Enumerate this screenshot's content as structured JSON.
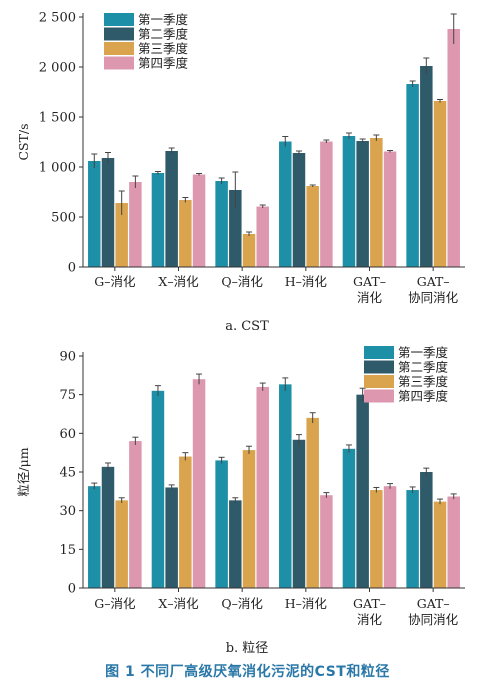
{
  "caption": "图 1   不同厂高级厌氧消化污泥的CST和粒径",
  "colors": [
    "#1d8fa6",
    "#2f5a6a",
    "#d9a44d",
    "#dd98b0"
  ],
  "chart_data": [
    {
      "type": "bar",
      "subtitle": "a. CST",
      "ylabel": "CST/s",
      "ylim": [
        0,
        2500
      ],
      "yticks": [
        0,
        500,
        1000,
        1500,
        2000,
        2500
      ],
      "ytick_labels": [
        "0",
        "500",
        "1 000",
        "1 500",
        "2 000",
        "2 500"
      ],
      "categories": [
        [
          "G–消化"
        ],
        [
          "X–消化"
        ],
        [
          "Q–消化"
        ],
        [
          "H–消化"
        ],
        [
          "GAT–",
          "消化"
        ],
        [
          "GAT–",
          "协同消化"
        ]
      ],
      "legend_position": "top-left",
      "series": [
        {
          "name": "第一季度",
          "values": [
            1060,
            940,
            860,
            1255,
            1310,
            1830
          ],
          "errors": [
            70,
            15,
            30,
            50,
            30,
            30
          ]
        },
        {
          "name": "第二季度",
          "values": [
            1090,
            1160,
            770,
            1140,
            1260,
            2010
          ],
          "errors": [
            55,
            30,
            180,
            20,
            20,
            80
          ]
        },
        {
          "name": "第三季度",
          "values": [
            640,
            670,
            330,
            810,
            1290,
            1660
          ],
          "errors": [
            120,
            25,
            20,
            10,
            30,
            15
          ]
        },
        {
          "name": "第四季度",
          "values": [
            850,
            925,
            605,
            1255,
            1155,
            2380
          ],
          "errors": [
            60,
            10,
            15,
            15,
            10,
            150
          ]
        }
      ]
    },
    {
      "type": "bar",
      "subtitle": "b. 粒径",
      "ylabel": "粒径/μm",
      "ylim": [
        0,
        90
      ],
      "yticks": [
        0,
        15,
        30,
        45,
        60,
        75,
        90
      ],
      "ytick_labels": [
        "0",
        "15",
        "30",
        "45",
        "60",
        "75",
        "90"
      ],
      "categories": [
        [
          "G–消化"
        ],
        [
          "X–消化"
        ],
        [
          "Q–消化"
        ],
        [
          "H–消化"
        ],
        [
          "GAT–",
          "消化"
        ],
        [
          "GAT–",
          "协同消化"
        ]
      ],
      "legend_position": "top-right",
      "series": [
        {
          "name": "第一季度",
          "values": [
            39.5,
            76.5,
            49.5,
            79,
            54,
            38
          ],
          "errors": [
            1.2,
            2,
            1.2,
            2.5,
            1.5,
            1.2
          ]
        },
        {
          "name": "第二季度",
          "values": [
            47,
            39,
            34,
            57.5,
            75,
            45
          ],
          "errors": [
            1.5,
            1,
            1,
            2,
            2.5,
            1.5
          ]
        },
        {
          "name": "第三季度",
          "values": [
            34,
            51,
            53.5,
            66,
            38,
            33.5
          ],
          "errors": [
            1,
            1.5,
            1.5,
            2,
            1,
            1
          ]
        },
        {
          "name": "第四季度",
          "values": [
            57,
            81,
            78,
            36,
            39.5,
            35.5
          ],
          "errors": [
            1.5,
            2,
            1.5,
            1,
            1,
            1
          ]
        }
      ]
    }
  ]
}
